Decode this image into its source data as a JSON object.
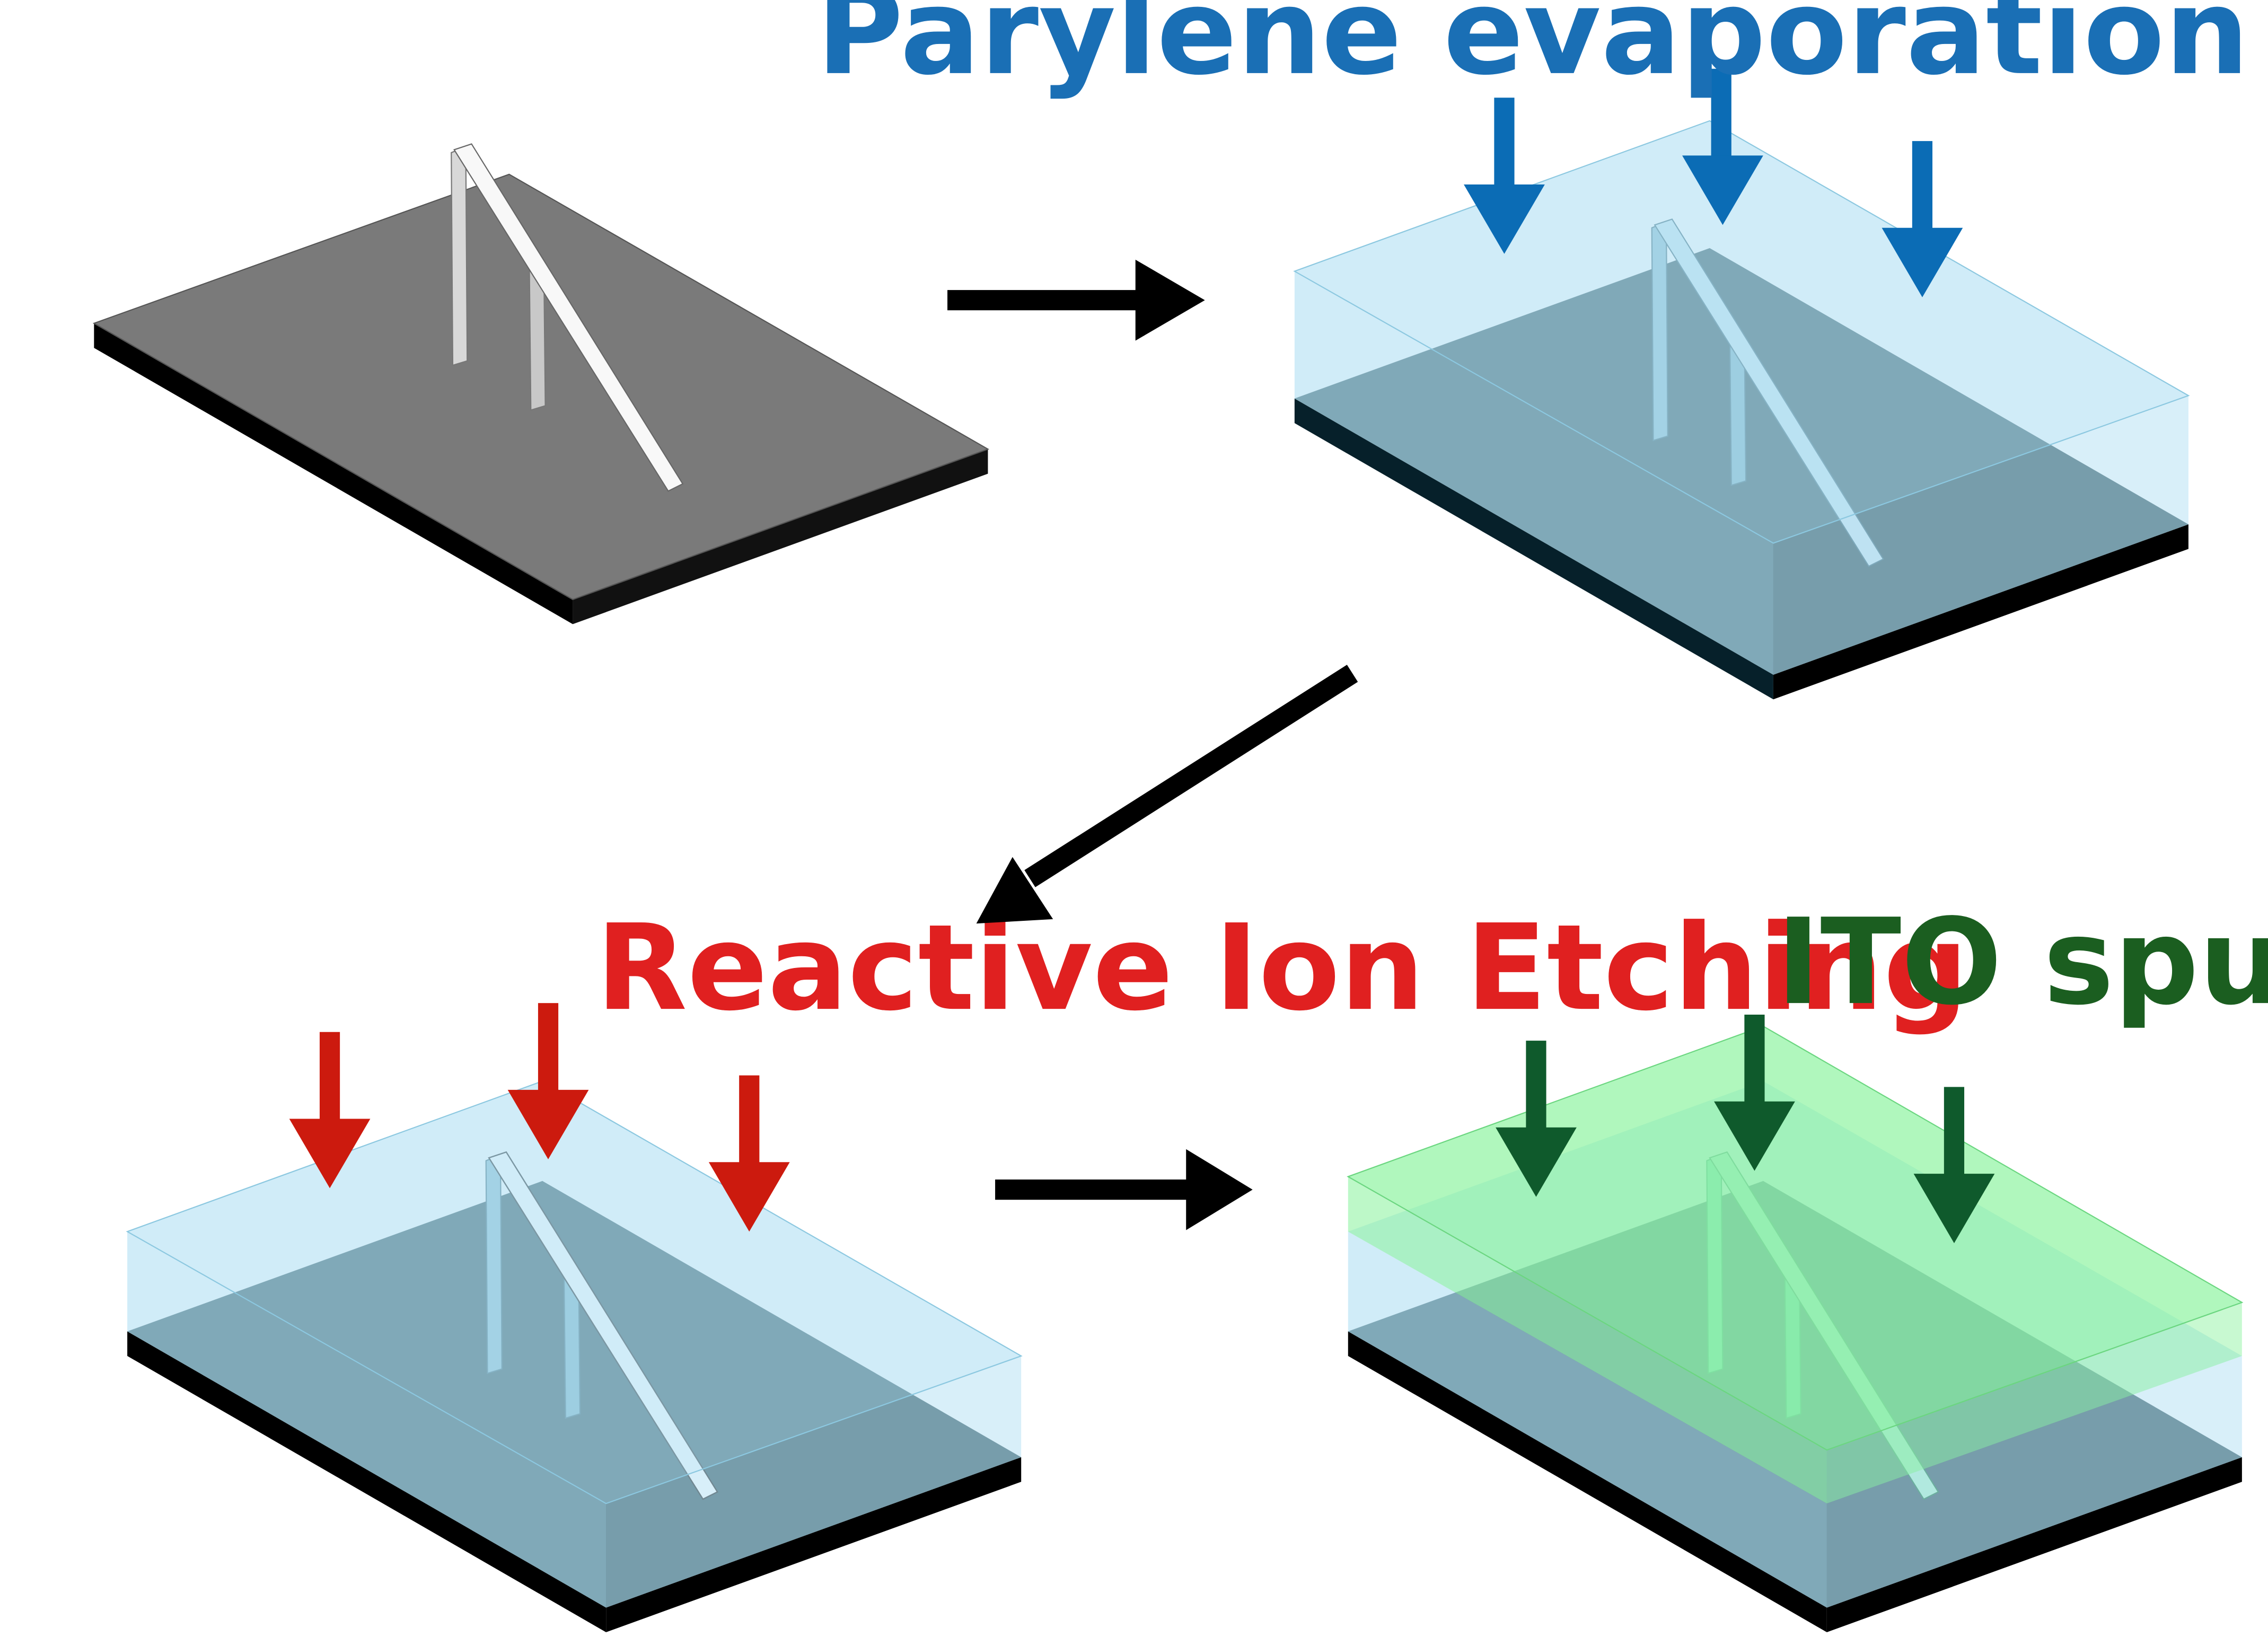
{
  "labels": {
    "parylene": "Parylene evaporation",
    "rie": "Reactive Ion Etching",
    "ito": "ITO sputter coating"
  },
  "colors": {
    "parylene_label": "#1a6fb5",
    "parylene_arrow": "#0b6cb5",
    "rie_label": "#e02020",
    "rie_arrow": "#cc1a0e",
    "ito_label": "#1b5e20",
    "ito_arrow": "#0f5a2c",
    "substrate_top": "#7a7a7a",
    "substrate_side": "#000000",
    "parylene_fill": "#a9dcf2",
    "ito_fill": "#86f29a",
    "process_arrow": "#000000"
  },
  "steps": [
    {
      "id": "bare-substrate"
    },
    {
      "id": "parylene-coated"
    },
    {
      "id": "after-rie"
    },
    {
      "id": "ito-coated"
    }
  ]
}
